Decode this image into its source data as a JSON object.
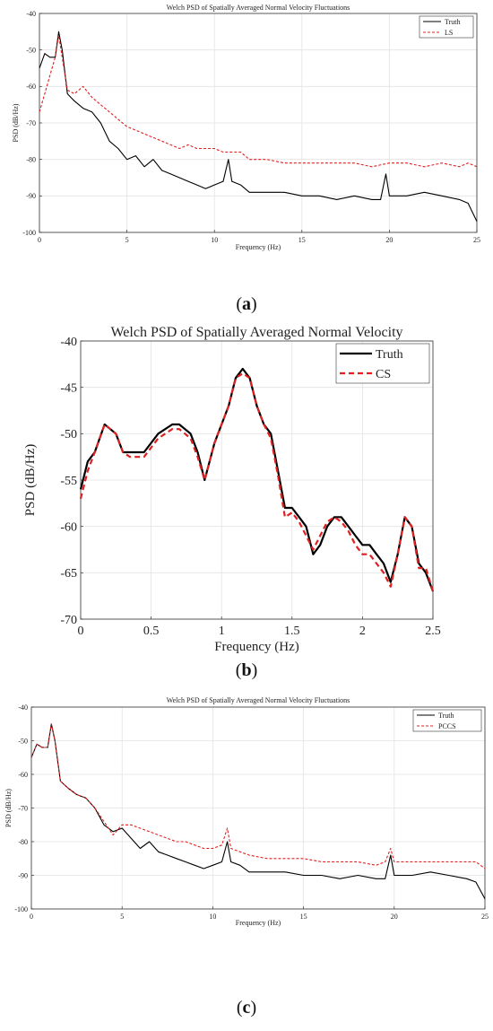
{
  "subfigure_labels": [
    "a",
    "b",
    "c"
  ],
  "chart_data": [
    {
      "type": "line",
      "title": "Welch PSD of Spatially Averaged Normal Velocity Fluctuations",
      "xlabel": "Frequency (Hz)",
      "ylabel": "PSD (dB/Hz)",
      "xlim": [
        0,
        25
      ],
      "ylim": [
        -100,
        -40
      ],
      "x_ticks": [
        "0",
        "5",
        "10",
        "15",
        "20",
        "25"
      ],
      "y_ticks": [
        "-40",
        "-50",
        "-60",
        "-70",
        "-80",
        "-90",
        "-100"
      ],
      "grid": true,
      "legend_position": "top-right",
      "series": [
        {
          "name": "Truth",
          "color": "#000000",
          "style": "solid",
          "x": [
            0,
            0.3,
            0.6,
            0.9,
            1.1,
            1.3,
            1.6,
            2.0,
            2.5,
            3.0,
            3.5,
            4.0,
            4.5,
            5.0,
            5.5,
            6.0,
            6.5,
            7.0,
            7.5,
            8.0,
            8.5,
            9.0,
            9.5,
            10.0,
            10.5,
            10.8,
            11.0,
            11.5,
            12.0,
            13.0,
            14.0,
            15.0,
            16.0,
            17.0,
            18.0,
            19.0,
            19.5,
            19.8,
            20.0,
            21.0,
            22.0,
            23.0,
            24.0,
            24.5,
            25.0
          ],
          "y": [
            -55,
            -51,
            -52,
            -52,
            -45,
            -50,
            -62,
            -64,
            -66,
            -67,
            -70,
            -75,
            -77,
            -80,
            -79,
            -82,
            -80,
            -83,
            -84,
            -85,
            -86,
            -87,
            -88,
            -87,
            -86,
            -80,
            -86,
            -87,
            -89,
            -89,
            -89,
            -90,
            -90,
            -91,
            -90,
            -91,
            -91,
            -84,
            -90,
            -90,
            -89,
            -90,
            -91,
            -92,
            -97
          ]
        },
        {
          "name": "LS",
          "color": "#e02020",
          "style": "dashed",
          "x": [
            0,
            0.3,
            0.6,
            0.9,
            1.1,
            1.3,
            1.6,
            2.0,
            2.5,
            3.0,
            3.5,
            4.0,
            4.5,
            5.0,
            5.5,
            6.0,
            6.5,
            7.0,
            7.5,
            8.0,
            8.5,
            9.0,
            9.5,
            10.0,
            10.5,
            11.0,
            11.5,
            12.0,
            13.0,
            14.0,
            15.0,
            16.0,
            17.0,
            18.0,
            19.0,
            20.0,
            21.0,
            22.0,
            23.0,
            24.0,
            24.5,
            25.0
          ],
          "y": [
            -67,
            -62,
            -57,
            -52,
            -46,
            -52,
            -61,
            -62,
            -60,
            -63,
            -65,
            -67,
            -69,
            -71,
            -72,
            -73,
            -74,
            -75,
            -76,
            -77,
            -76,
            -77,
            -77,
            -77,
            -78,
            -78,
            -78,
            -80,
            -80,
            -81,
            -81,
            -81,
            -81,
            -81,
            -82,
            -81,
            -81,
            -82,
            -81,
            -82,
            -81,
            -82
          ]
        }
      ]
    },
    {
      "type": "line",
      "title": "Welch PSD of Spatially Averaged Normal Velocity",
      "xlabel": "Frequency (Hz)",
      "ylabel": "PSD (dB/Hz)",
      "xlim": [
        0,
        2.5
      ],
      "ylim": [
        -70,
        -40
      ],
      "x_ticks": [
        "0",
        "0.5",
        "1",
        "1.5",
        "2",
        "2.5"
      ],
      "y_ticks": [
        "-40",
        "-45",
        "-50",
        "-55",
        "-60",
        "-65",
        "-70"
      ],
      "grid": true,
      "legend_position": "top-right",
      "series": [
        {
          "name": "Truth",
          "color": "#000000",
          "style": "solid",
          "x": [
            0,
            0.05,
            0.1,
            0.17,
            0.25,
            0.3,
            0.35,
            0.4,
            0.45,
            0.55,
            0.65,
            0.7,
            0.78,
            0.83,
            0.88,
            0.95,
            1.0,
            1.05,
            1.1,
            1.15,
            1.2,
            1.25,
            1.3,
            1.35,
            1.4,
            1.45,
            1.5,
            1.55,
            1.6,
            1.65,
            1.7,
            1.75,
            1.8,
            1.85,
            1.9,
            1.95,
            2.0,
            2.05,
            2.1,
            2.15,
            2.2,
            2.25,
            2.3,
            2.35,
            2.4,
            2.45,
            2.5
          ],
          "y": [
            -56,
            -53,
            -52,
            -49,
            -50,
            -52,
            -52,
            -52,
            -52,
            -50,
            -49,
            -49,
            -50,
            -52,
            -55,
            -51,
            -49,
            -47,
            -44,
            -43,
            -44,
            -47,
            -49,
            -50,
            -54,
            -58,
            -58,
            -59,
            -60,
            -63,
            -62,
            -60,
            -59,
            -59,
            -60,
            -61,
            -62,
            -62,
            -63,
            -64,
            -66,
            -63,
            -59,
            -60,
            -64,
            -65,
            -67
          ]
        },
        {
          "name": "CS",
          "color": "#e02020",
          "style": "dashed",
          "x": [
            0,
            0.05,
            0.1,
            0.17,
            0.25,
            0.3,
            0.35,
            0.4,
            0.45,
            0.55,
            0.65,
            0.7,
            0.78,
            0.83,
            0.88,
            0.95,
            1.0,
            1.05,
            1.1,
            1.15,
            1.2,
            1.25,
            1.3,
            1.35,
            1.4,
            1.45,
            1.5,
            1.55,
            1.6,
            1.65,
            1.7,
            1.75,
            1.8,
            1.85,
            1.9,
            1.95,
            2.0,
            2.05,
            2.1,
            2.15,
            2.2,
            2.25,
            2.3,
            2.35,
            2.4,
            2.45,
            2.5
          ],
          "y": [
            -57,
            -54,
            -52,
            -49,
            -50,
            -52,
            -52.5,
            -52.5,
            -52.5,
            -50.5,
            -49.5,
            -49.5,
            -50.5,
            -52.5,
            -55,
            -51,
            -49,
            -47,
            -44,
            -43.5,
            -44,
            -47,
            -49,
            -50.5,
            -54.5,
            -59,
            -58.5,
            -59.5,
            -61,
            -62.5,
            -61,
            -59.5,
            -59,
            -59.5,
            -60.5,
            -62,
            -63,
            -63,
            -64,
            -65,
            -66.5,
            -63,
            -59,
            -60,
            -64.5,
            -64.5,
            -67
          ]
        }
      ]
    },
    {
      "type": "line",
      "title": "Welch PSD of Spatially Averaged Normal Velocity Fluctuations",
      "xlabel": "Frequency (Hz)",
      "ylabel": "PSD (dB/Hz)",
      "xlim": [
        0,
        25
      ],
      "ylim": [
        -100,
        -40
      ],
      "x_ticks": [
        "0",
        "5",
        "10",
        "15",
        "20",
        "25"
      ],
      "y_ticks": [
        "-40",
        "-50",
        "-60",
        "-70",
        "-80",
        "-90",
        "-100"
      ],
      "grid": true,
      "legend_position": "top-right",
      "series": [
        {
          "name": "Truth",
          "color": "#000000",
          "style": "solid",
          "x": [
            0,
            0.3,
            0.6,
            0.9,
            1.1,
            1.3,
            1.6,
            2.0,
            2.5,
            3.0,
            3.5,
            4.0,
            4.5,
            5.0,
            5.5,
            6.0,
            6.5,
            7.0,
            7.5,
            8.0,
            8.5,
            9.0,
            9.5,
            10.0,
            10.5,
            10.8,
            11.0,
            11.5,
            12.0,
            13.0,
            14.0,
            15.0,
            16.0,
            17.0,
            18.0,
            19.0,
            19.5,
            19.8,
            20.0,
            21.0,
            22.0,
            23.0,
            24.0,
            24.5,
            25.0
          ],
          "y": [
            -55,
            -51,
            -52,
            -52,
            -45,
            -50,
            -62,
            -64,
            -66,
            -67,
            -70,
            -75,
            -77,
            -76,
            -79,
            -82,
            -80,
            -83,
            -84,
            -85,
            -86,
            -87,
            -88,
            -87,
            -86,
            -80,
            -86,
            -87,
            -89,
            -89,
            -89,
            -90,
            -90,
            -91,
            -90,
            -91,
            -91,
            -84,
            -90,
            -90,
            -89,
            -90,
            -91,
            -92,
            -97
          ]
        },
        {
          "name": "PCCS",
          "color": "#e02020",
          "style": "dashed",
          "x": [
            0,
            0.3,
            0.6,
            0.9,
            1.1,
            1.3,
            1.6,
            2.0,
            2.5,
            3.0,
            3.5,
            4.0,
            4.5,
            5.0,
            5.5,
            6.0,
            6.5,
            7.0,
            7.5,
            8.0,
            8.5,
            9.0,
            9.5,
            10.0,
            10.5,
            10.8,
            11.0,
            11.5,
            12.0,
            13.0,
            14.0,
            15.0,
            16.0,
            17.0,
            18.0,
            19.0,
            19.5,
            19.8,
            20.0,
            21.0,
            22.0,
            23.0,
            24.0,
            24.5,
            25.0
          ],
          "y": [
            -55,
            -51,
            -52,
            -52,
            -45,
            -50,
            -62,
            -64,
            -66,
            -67,
            -70,
            -74,
            -78,
            -75,
            -75,
            -76,
            -77,
            -78,
            -79,
            -80,
            -80,
            -81,
            -82,
            -82,
            -81,
            -76,
            -82,
            -83,
            -84,
            -85,
            -85,
            -85,
            -86,
            -86,
            -86,
            -87,
            -86,
            -82,
            -86,
            -86,
            -86,
            -86,
            -86,
            -86,
            -88
          ]
        }
      ]
    }
  ]
}
